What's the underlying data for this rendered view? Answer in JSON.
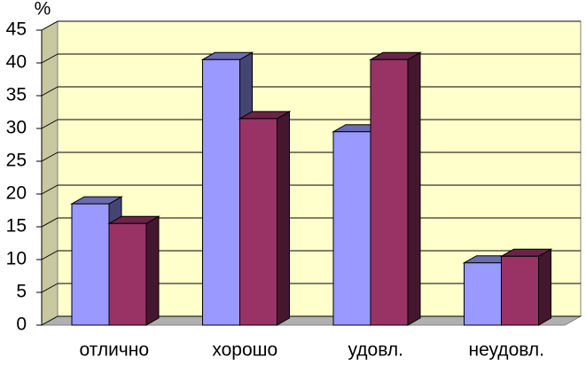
{
  "chart_data": {
    "type": "bar3d",
    "y_label": "%",
    "categories": [
      "отлично",
      "хорошо",
      "удовл.",
      "неудовл."
    ],
    "series": [
      {
        "color": "#9999ff",
        "values": [
          18.5,
          40.5,
          29.5,
          9.5
        ]
      },
      {
        "color": "#993366",
        "values": [
          15.5,
          31.5,
          40.5,
          10.5
        ]
      }
    ],
    "ylim": [
      0,
      45
    ],
    "yticks": [
      0,
      5,
      10,
      15,
      20,
      25,
      30,
      35,
      40,
      45
    ],
    "grid": true
  }
}
